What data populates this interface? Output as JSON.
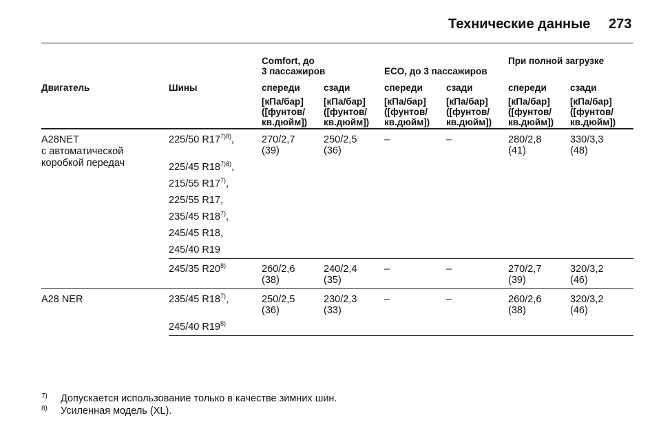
{
  "header": {
    "title": "Технические данные",
    "page": "273"
  },
  "table": {
    "group_headers": [
      [
        "Comfort, до",
        "3 пассажиров"
      ],
      [
        "ECO, до 3 пассажиров"
      ],
      [
        "При полной загрузке"
      ]
    ],
    "column_headers": [
      "Двигатель",
      "Шины",
      "спереди",
      "сзади",
      "спереди",
      "сзади",
      "спереди",
      "сзади"
    ],
    "units": [
      [
        "[кПа/бар]",
        "([фунтов/",
        "кв.дюйм])"
      ],
      [
        "[кПа/бар]",
        "([фунтов/",
        "кв.дюйм])"
      ],
      [
        "[кПа/бар]",
        "([фунтов/",
        "кв.дюйм])"
      ],
      [
        "[кПа/бар]",
        "([фунтов/",
        "кв.дюйм])"
      ],
      [
        "[кПа/бар]",
        "([фунтов/",
        "кв.дюйм])"
      ],
      [
        "[кПа/бар]",
        "([фунтов/",
        "кв.дюйм])"
      ]
    ],
    "rows": [
      {
        "engine": [
          "A28NET",
          "с автоматической",
          "коробкой передач"
        ],
        "groups": [
          {
            "tires": [
              {
                "size": "225/50 R17",
                "notes": "7)8)",
                "sep": ","
              },
              {
                "size": "225/45 R18",
                "notes": "7)8)",
                "sep": ","
              },
              {
                "size": "215/55 R17",
                "notes": "7)",
                "sep": ","
              },
              {
                "size": "225/55 R17",
                "sep": ","
              },
              {
                "size": "235/45 R18",
                "notes": "7)",
                "sep": ","
              },
              {
                "size": "245/45 R18",
                "sep": ","
              },
              {
                "size": "245/40 R19"
              }
            ],
            "pressures": [
              [
                "270/2,7",
                "(39)"
              ],
              [
                "250/2,5",
                "(36)"
              ],
              [
                "–"
              ],
              [
                "–"
              ],
              [
                "280/2,8",
                "(41)"
              ],
              [
                "330/3,3",
                "(48)"
              ]
            ]
          },
          {
            "tires": [
              {
                "size": "245/35 R20",
                "notes": "8)"
              }
            ],
            "pressures": [
              [
                "260/2,6",
                "(38)"
              ],
              [
                "240/2,4",
                "(35)"
              ],
              [
                "–"
              ],
              [
                "–"
              ],
              [
                "270/2,7",
                "(39)"
              ],
              [
                "320/3,2",
                "(46)"
              ]
            ]
          }
        ]
      },
      {
        "engine": [
          "A28 NER"
        ],
        "groups": [
          {
            "tires": [
              {
                "size": "235/45 R18",
                "notes": "7)",
                "sep": ","
              },
              {
                "size": "245/40 R19",
                "notes": "8)"
              }
            ],
            "pressures": [
              [
                "250/2,5",
                "(36)"
              ],
              [
                "230/2,3",
                "(33)"
              ],
              [
                "–"
              ],
              [
                "–"
              ],
              [
                "260/2,6",
                "(38)"
              ],
              [
                "320/3,2",
                "(46)"
              ]
            ]
          }
        ]
      }
    ]
  },
  "footnotes": [
    {
      "mark": "7)",
      "text": "Допускается использование только в качестве зимних шин."
    },
    {
      "mark": "8)",
      "text": "Усиленная модель (XL)."
    }
  ]
}
